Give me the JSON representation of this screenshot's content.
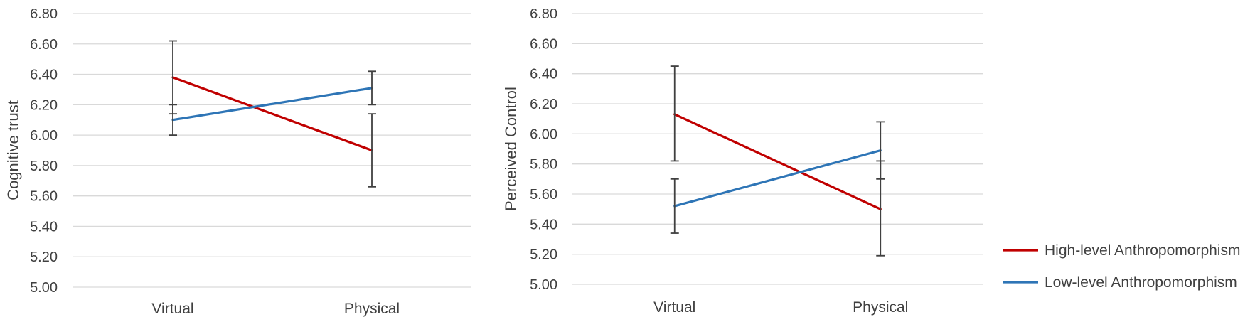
{
  "legend": {
    "items": [
      {
        "label": "High-level Anthropomorphism",
        "color": "#c00000"
      },
      {
        "label": "Low-level Anthropomorphism",
        "color": "#2e75b6"
      }
    ],
    "placement": "right"
  },
  "chart_data": [
    {
      "type": "line",
      "ylabel": "Cognitive trust",
      "xlabel": "",
      "categories": [
        "Virtual",
        "Physical"
      ],
      "ylim": [
        5.0,
        6.8
      ],
      "ytick_step": 0.2,
      "ytick_labels": [
        "5.00",
        "5.20",
        "5.40",
        "5.60",
        "5.80",
        "6.00",
        "6.20",
        "6.40",
        "6.60",
        "6.80"
      ],
      "grid": true,
      "series": [
        {
          "name": "High-level Anthropomorphism",
          "color": "#c00000",
          "values": [
            6.38,
            5.9
          ],
          "error_low": [
            6.14,
            5.66
          ],
          "error_high": [
            6.62,
            6.14
          ]
        },
        {
          "name": "Low-level Anthropomorphism",
          "color": "#2e75b6",
          "values": [
            6.1,
            6.31
          ],
          "error_low": [
            6.0,
            6.2
          ],
          "error_high": [
            6.2,
            6.42
          ]
        }
      ]
    },
    {
      "type": "line",
      "ylabel": "Perceived Control",
      "xlabel": "",
      "categories": [
        "Virtual",
        "Physical"
      ],
      "ylim": [
        5.0,
        6.8
      ],
      "ytick_step": 0.2,
      "ytick_labels": [
        "5.00",
        "5.20",
        "5.40",
        "5.60",
        "5.80",
        "6.00",
        "6.20",
        "6.40",
        "6.60",
        "6.80"
      ],
      "grid": true,
      "series": [
        {
          "name": "High-level Anthropomorphism",
          "color": "#c00000",
          "values": [
            6.13,
            5.5
          ],
          "error_low": [
            5.82,
            5.19
          ],
          "error_high": [
            6.45,
            5.82
          ]
        },
        {
          "name": "Low-level Anthropomorphism",
          "color": "#2e75b6",
          "values": [
            5.52,
            5.89
          ],
          "error_low": [
            5.34,
            5.7
          ],
          "error_high": [
            5.7,
            6.08
          ]
        }
      ]
    }
  ]
}
